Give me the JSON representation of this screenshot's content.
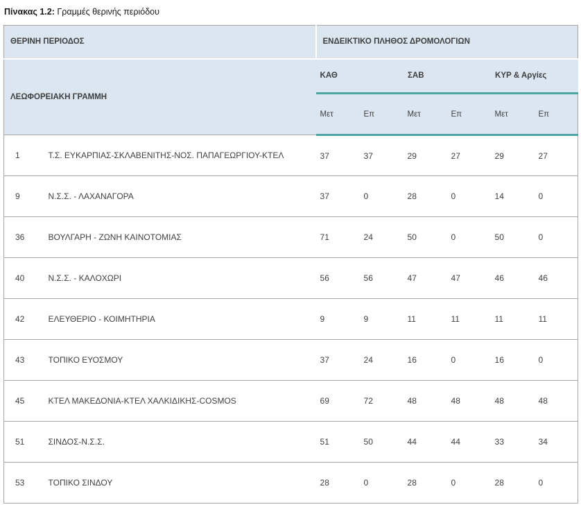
{
  "title": {
    "label": "Πίνακας 1.2:",
    "text": "Γραμμές θερινής περιόδου"
  },
  "table": {
    "header": {
      "period": "ΘΕΡΙΝΗ ΠΕΡΙΟΔΟΣ",
      "frequency": "ΕΝΔΕΙΚΤΙΚΟ ΠΛΗΘΟΣ ΔΡΟΜΟΛΟΓΙΩΝ",
      "line": "ΛΕΩΦΟΡΕΙΑΚΗ ΓΡΑΜΜΗ",
      "groups": [
        "ΚΑΘ",
        "ΣΑΒ",
        "ΚΥΡ & Αργίες"
      ],
      "subcols": [
        "Μετ",
        "Επ"
      ]
    },
    "rows": [
      {
        "num": "1",
        "name": "Τ.Σ. ΕΥΚΑΡΠΙΑΣ-ΣΚΛΑΒΕΝΙΤΗΣ-ΝΟΣ. ΠΑΠΑΓΕΩΡΓΙΟΥ-ΚΤΕΛ",
        "values": [
          37,
          37,
          29,
          27,
          29,
          27
        ]
      },
      {
        "num": "9",
        "name": "Ν.Σ.Σ. - ΛΑΧΑΝΑΓΟΡΑ",
        "values": [
          37,
          0,
          28,
          0,
          14,
          0
        ]
      },
      {
        "num": "36",
        "name": "ΒΟΥΛΓΑΡΗ - ΖΩΝΗ ΚΑΙΝΟΤΟΜΙΑΣ",
        "values": [
          71,
          24,
          50,
          0,
          50,
          0
        ]
      },
      {
        "num": "40",
        "name": "Ν.Σ.Σ. - ΚΑΛΟΧΩΡΙ",
        "values": [
          56,
          56,
          47,
          47,
          46,
          46
        ]
      },
      {
        "num": "42",
        "name": "ΕΛΕΥΘΕΡΙΟ - ΚΟΙΜΗΤΗΡΙΑ",
        "values": [
          9,
          9,
          11,
          11,
          11,
          11
        ]
      },
      {
        "num": "43",
        "name": "ΤΟΠΙΚΟ ΕΥΟΣΜΟΥ",
        "values": [
          37,
          24,
          16,
          0,
          16,
          0
        ]
      },
      {
        "num": "45",
        "name": "ΚΤΕΛ ΜΑΚΕΔΟΝΙΑ-ΚΤΕΛ ΧΑΛΚΙΔΙΚΗΣ-COSMOS",
        "values": [
          69,
          72,
          48,
          48,
          48,
          48
        ]
      },
      {
        "num": "51",
        "name": "ΣΙΝΔΟΣ-Ν.Σ.Σ.",
        "values": [
          51,
          50,
          44,
          44,
          33,
          34
        ]
      },
      {
        "num": "53",
        "name": "ΤΟΠΙΚΟ ΣΙΝΔΟΥ",
        "values": [
          28,
          0,
          28,
          0,
          28,
          0
        ]
      }
    ]
  },
  "colors": {
    "header_bg": "#dce6f1",
    "accent_teal": "#4ba5a0",
    "border": "#a6a6a6",
    "text": "#3f3f3f"
  }
}
